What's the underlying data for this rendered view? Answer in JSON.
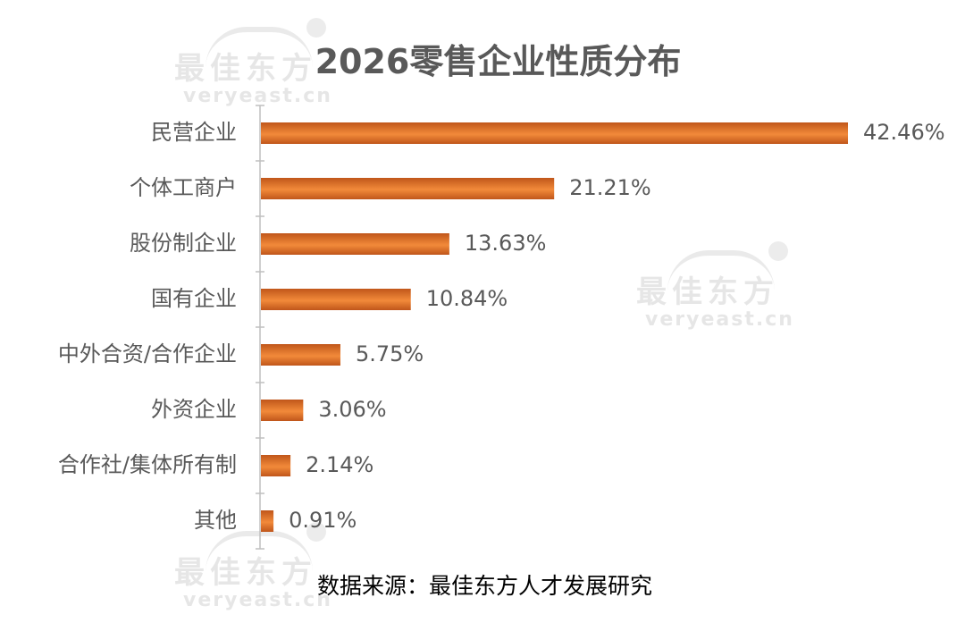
{
  "watermark": {
    "cn": "最佳东方",
    "en": "veryeast.cn"
  },
  "source_note": "数据来源：最佳东方人才发展研究",
  "colors": {
    "bar_dark": "#c0561a",
    "bar_light": "#f28a3a",
    "text": "#595959",
    "axis": "#bfbfbf"
  },
  "chart_data": {
    "type": "bar",
    "orientation": "horizontal",
    "title": "2026零售企业性质分布",
    "xlabel": "",
    "ylabel": "",
    "categories": [
      "民营企业",
      "个体工商户",
      "股份制企业",
      "国有企业",
      "中外合资/合作企业",
      "外资企业",
      "合作社/集体所有制",
      "其他"
    ],
    "values": [
      42.46,
      21.21,
      13.63,
      10.84,
      5.75,
      3.06,
      2.14,
      0.91
    ],
    "value_labels": [
      "42.46%",
      "21.21%",
      "13.63%",
      "10.84%",
      "5.75%",
      "3.06%",
      "2.14%",
      "0.91%"
    ],
    "unit": "%",
    "grid": false,
    "legend": "none"
  }
}
